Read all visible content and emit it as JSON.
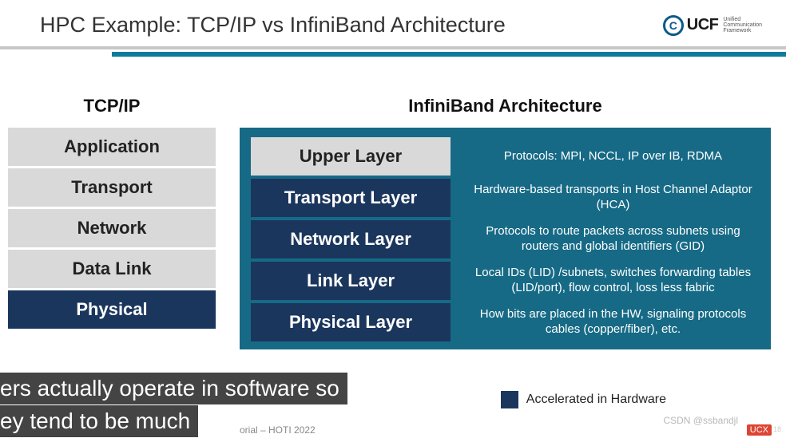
{
  "slide": {
    "title": "HPC Example: TCP/IP vs InfiniBand Architecture",
    "logo": {
      "mark": "C",
      "text": "UCF",
      "sub1": "Unified",
      "sub2": "Communication",
      "sub3": "Framework"
    }
  },
  "colors": {
    "teal_bg": "#166a86",
    "dark_navy": "#1b365d",
    "light_gray": "#d9d9d9",
    "hr_teal": "#0f7b9b",
    "hr_gray": "#c7c7c7"
  },
  "tcpip": {
    "title": "TCP/IP",
    "layers": [
      {
        "label": "Application",
        "accel": false
      },
      {
        "label": "Transport",
        "accel": false
      },
      {
        "label": "Network",
        "accel": false
      },
      {
        "label": "Data Link",
        "accel": false
      },
      {
        "label": "Physical",
        "accel": true
      }
    ]
  },
  "infiniband": {
    "title": "InfiniBand Architecture",
    "layers": [
      {
        "label": "Upper Layer",
        "accel": false,
        "desc": "Protocols: MPI, NCCL, IP over IB, RDMA"
      },
      {
        "label": "Transport Layer",
        "accel": true,
        "desc": "Hardware-based transports in Host Channel Adaptor (HCA)"
      },
      {
        "label": "Network Layer",
        "accel": true,
        "desc": "Protocols to route packets across subnets using routers and global identifiers (GID)"
      },
      {
        "label": "Link Layer",
        "accel": true,
        "desc": "Local IDs (LID) /subnets, switches forwarding tables (LID/port), flow control, loss less fabric"
      },
      {
        "label": "Physical Layer",
        "accel": true,
        "desc": "How bits are placed in the HW, signaling protocols cables (copper/fiber), etc."
      }
    ]
  },
  "legend": {
    "label": "Accelerated in Hardware"
  },
  "captions": {
    "line1": "ers actually operate in software so",
    "line2": "ey tend to be much"
  },
  "footer": {
    "fragment": "orial – HOTI 2022",
    "watermark": "CSDN @ssbandjl",
    "ucx": "UCX",
    "page": "18"
  }
}
